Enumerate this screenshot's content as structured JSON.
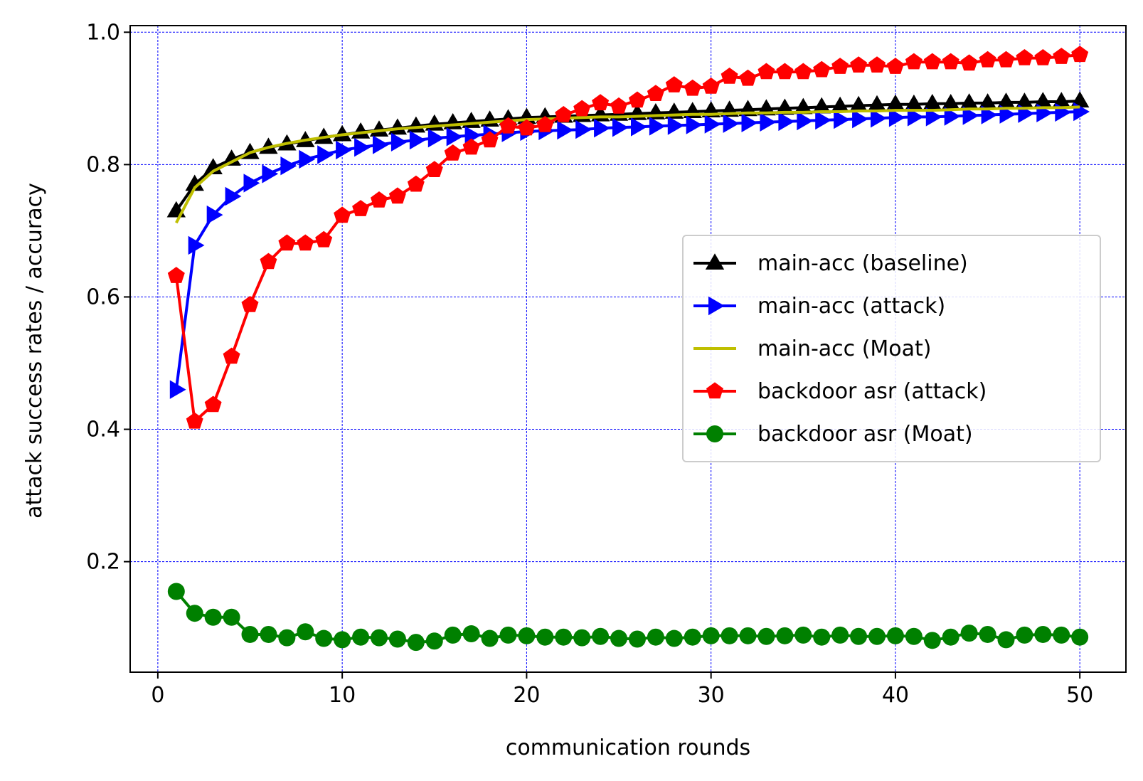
{
  "chart_data": {
    "type": "line",
    "title": "",
    "xlabel": "communication rounds",
    "ylabel": "attack success rates / accuracy",
    "xlim": [
      -1.5,
      52.5
    ],
    "ylim": [
      0.033,
      1.01
    ],
    "xticks": [
      0,
      10,
      20,
      30,
      40,
      50
    ],
    "xtick_labels": [
      "0",
      "10",
      "20",
      "30",
      "40",
      "50"
    ],
    "yticks": [
      0.2,
      0.4,
      0.6,
      0.8,
      1.0
    ],
    "ytick_labels": [
      "0.2",
      "0.4",
      "0.6",
      "0.8",
      "1.0"
    ],
    "grid": true,
    "grid_color": "#0000ff",
    "legend_position": "center-right",
    "x": [
      1,
      2,
      3,
      4,
      5,
      6,
      7,
      8,
      9,
      10,
      11,
      12,
      13,
      14,
      15,
      16,
      17,
      18,
      19,
      20,
      21,
      22,
      23,
      24,
      25,
      26,
      27,
      28,
      29,
      30,
      31,
      32,
      33,
      34,
      35,
      36,
      37,
      38,
      39,
      40,
      41,
      42,
      43,
      44,
      45,
      46,
      47,
      48,
      49,
      50
    ],
    "series": [
      {
        "name": "main-acc (baseline)",
        "color": "#000000",
        "marker": "triangle-up",
        "values": [
          0.73,
          0.77,
          0.795,
          0.808,
          0.818,
          0.826,
          0.831,
          0.836,
          0.841,
          0.845,
          0.849,
          0.852,
          0.855,
          0.858,
          0.861,
          0.863,
          0.865,
          0.867,
          0.869,
          0.871,
          0.872,
          0.873,
          0.874,
          0.875,
          0.876,
          0.877,
          0.878,
          0.879,
          0.88,
          0.881,
          0.882,
          0.883,
          0.884,
          0.885,
          0.886,
          0.887,
          0.888,
          0.889,
          0.89,
          0.891,
          0.891,
          0.892,
          0.892,
          0.893,
          0.893,
          0.894,
          0.894,
          0.895,
          0.895,
          0.896
        ]
      },
      {
        "name": "main-acc (attack)",
        "color": "#0000ff",
        "marker": "triangle-right",
        "values": [
          0.46,
          0.678,
          0.724,
          0.752,
          0.772,
          0.786,
          0.798,
          0.808,
          0.815,
          0.822,
          0.826,
          0.83,
          0.834,
          0.837,
          0.84,
          0.842,
          0.844,
          0.846,
          0.848,
          0.85,
          0.851,
          0.852,
          0.853,
          0.855,
          0.856,
          0.857,
          0.858,
          0.859,
          0.86,
          0.861,
          0.862,
          0.863,
          0.864,
          0.865,
          0.866,
          0.867,
          0.868,
          0.869,
          0.87,
          0.871,
          0.872,
          0.872,
          0.873,
          0.874,
          0.875,
          0.876,
          0.877,
          0.878,
          0.879,
          0.88
        ]
      },
      {
        "name": "main-acc (Moat)",
        "color": "#bfbf00",
        "marker": "none",
        "values": [
          0.712,
          0.765,
          0.79,
          0.804,
          0.818,
          0.826,
          0.832,
          0.837,
          0.841,
          0.845,
          0.848,
          0.851,
          0.854,
          0.856,
          0.858,
          0.86,
          0.862,
          0.864,
          0.866,
          0.868,
          0.869,
          0.87,
          0.871,
          0.872,
          0.872,
          0.873,
          0.874,
          0.875,
          0.876,
          0.876,
          0.877,
          0.878,
          0.878,
          0.879,
          0.879,
          0.88,
          0.88,
          0.881,
          0.881,
          0.882,
          0.882,
          0.882,
          0.883,
          0.884,
          0.884,
          0.885,
          0.885,
          0.886,
          0.886,
          0.887
        ]
      },
      {
        "name": "backdoor asr (attack)",
        "color": "#ff0000",
        "marker": "pentagon",
        "values": [
          0.632,
          0.412,
          0.437,
          0.51,
          0.588,
          0.653,
          0.681,
          0.681,
          0.686,
          0.723,
          0.733,
          0.746,
          0.752,
          0.77,
          0.792,
          0.817,
          0.826,
          0.837,
          0.858,
          0.855,
          0.86,
          0.875,
          0.884,
          0.893,
          0.888,
          0.897,
          0.907,
          0.92,
          0.915,
          0.918,
          0.933,
          0.93,
          0.94,
          0.94,
          0.94,
          0.943,
          0.948,
          0.95,
          0.95,
          0.948,
          0.955,
          0.955,
          0.955,
          0.953,
          0.958,
          0.958,
          0.961,
          0.961,
          0.963,
          0.966
        ]
      },
      {
        "name": "backdoor asr (Moat)",
        "color": "#008000",
        "marker": "circle",
        "values": [
          0.155,
          0.122,
          0.116,
          0.116,
          0.09,
          0.09,
          0.085,
          0.094,
          0.084,
          0.082,
          0.086,
          0.085,
          0.083,
          0.078,
          0.08,
          0.089,
          0.091,
          0.084,
          0.089,
          0.088,
          0.086,
          0.086,
          0.085,
          0.087,
          0.084,
          0.083,
          0.086,
          0.084,
          0.086,
          0.088,
          0.088,
          0.088,
          0.087,
          0.088,
          0.089,
          0.086,
          0.089,
          0.087,
          0.087,
          0.088,
          0.087,
          0.081,
          0.086,
          0.092,
          0.09,
          0.082,
          0.089,
          0.09,
          0.089,
          0.086
        ]
      }
    ]
  }
}
